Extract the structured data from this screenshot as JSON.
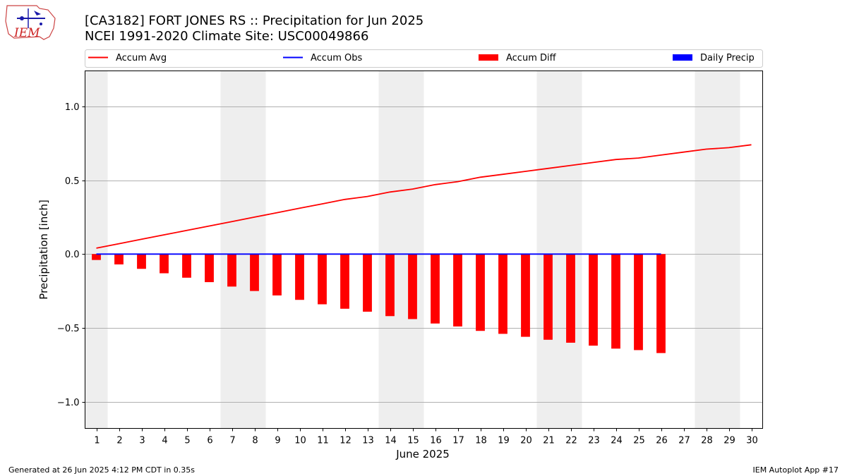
{
  "logo": {
    "text": "IEM",
    "color": "#cc2222"
  },
  "titles": [
    "[CA3182] FORT JONES RS :: Precipitation for Jun 2025",
    "NCEI 1991-2020 Climate Site: USC00049866"
  ],
  "footer": {
    "left": "Generated at 26 Jun 2025 4:12 PM CDT in 0.35s",
    "right": "IEM Autoplot App #17"
  },
  "chart_data": {
    "type": "bar",
    "xlabel": "June 2025",
    "ylabel": "Precipitation [inch]",
    "xlim": [
      0.5,
      30.5
    ],
    "ylim": [
      -1.18,
      1.24
    ],
    "yticks": [
      -1.0,
      -0.5,
      0.0,
      0.5,
      1.0
    ],
    "ytick_labels": [
      "−1.0",
      "−0.5",
      "0.0",
      "0.5",
      "1.0"
    ],
    "grid": true,
    "legend_position": "top",
    "weekend_shading": [
      [
        0.5,
        1.5
      ],
      [
        6.5,
        8.5
      ],
      [
        13.5,
        15.5
      ],
      [
        20.5,
        22.5
      ],
      [
        27.5,
        29.5
      ]
    ],
    "days": [
      1,
      2,
      3,
      4,
      5,
      6,
      7,
      8,
      9,
      10,
      11,
      12,
      13,
      14,
      15,
      16,
      17,
      18,
      19,
      20,
      21,
      22,
      23,
      24,
      25,
      26,
      27,
      28,
      29,
      30
    ],
    "series": [
      {
        "name": "Accum Avg",
        "kind": "line",
        "color": "#ff0000",
        "x": [
          1,
          2,
          3,
          4,
          5,
          6,
          7,
          8,
          9,
          10,
          11,
          12,
          13,
          14,
          15,
          16,
          17,
          18,
          19,
          20,
          21,
          22,
          23,
          24,
          25,
          26,
          27,
          28,
          29,
          30
        ],
        "values": [
          0.04,
          0.07,
          0.1,
          0.13,
          0.16,
          0.19,
          0.22,
          0.25,
          0.28,
          0.31,
          0.34,
          0.37,
          0.39,
          0.42,
          0.44,
          0.47,
          0.49,
          0.52,
          0.54,
          0.56,
          0.58,
          0.6,
          0.62,
          0.64,
          0.65,
          0.67,
          0.69,
          0.71,
          0.72,
          0.74
        ]
      },
      {
        "name": "Accum Obs",
        "kind": "line",
        "color": "#0000ff",
        "x": [
          1,
          2,
          3,
          4,
          5,
          6,
          7,
          8,
          9,
          10,
          11,
          12,
          13,
          14,
          15,
          16,
          17,
          18,
          19,
          20,
          21,
          22,
          23,
          24,
          25,
          26
        ],
        "values": [
          0,
          0,
          0,
          0,
          0,
          0,
          0,
          0,
          0,
          0,
          0,
          0,
          0,
          0,
          0,
          0,
          0,
          0,
          0,
          0,
          0,
          0,
          0,
          0,
          0,
          0
        ]
      },
      {
        "name": "Accum Diff",
        "kind": "bar",
        "color": "#ff0000",
        "x": [
          1,
          2,
          3,
          4,
          5,
          6,
          7,
          8,
          9,
          10,
          11,
          12,
          13,
          14,
          15,
          16,
          17,
          18,
          19,
          20,
          21,
          22,
          23,
          24,
          25,
          26
        ],
        "values": [
          -0.04,
          -0.07,
          -0.1,
          -0.13,
          -0.16,
          -0.19,
          -0.22,
          -0.25,
          -0.28,
          -0.31,
          -0.34,
          -0.37,
          -0.39,
          -0.42,
          -0.44,
          -0.47,
          -0.49,
          -0.52,
          -0.54,
          -0.56,
          -0.58,
          -0.6,
          -0.62,
          -0.64,
          -0.65,
          -0.67
        ]
      },
      {
        "name": "Daily Precip",
        "kind": "bar",
        "color": "#0000ff",
        "x": [
          1,
          2,
          3,
          4,
          5,
          6,
          7,
          8,
          9,
          10,
          11,
          12,
          13,
          14,
          15,
          16,
          17,
          18,
          19,
          20,
          21,
          22,
          23,
          24,
          25,
          26
        ],
        "values": [
          0,
          0,
          0,
          0,
          0,
          0,
          0,
          0,
          0,
          0,
          0,
          0,
          0,
          0,
          0,
          0,
          0,
          0,
          0,
          0,
          0,
          0,
          0,
          0,
          0,
          0
        ]
      }
    ]
  }
}
